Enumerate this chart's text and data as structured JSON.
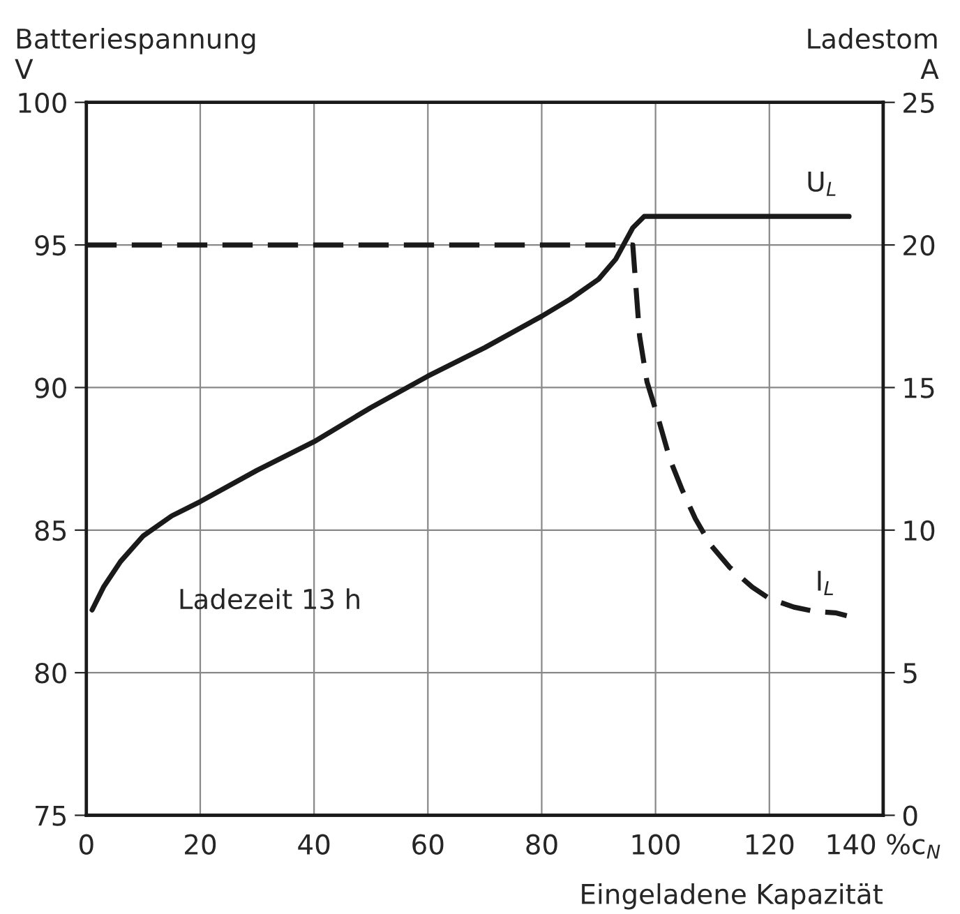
{
  "chart_data": {
    "type": "line",
    "xlabel": "Eingeladene Kapazität",
    "ylabel": "Batteriespannung\nV",
    "y2label": "Ladestom\nA",
    "series": [
      {
        "name": "U$_{L}$",
        "color": "#1a1a1a",
        "line_style": "solid",
        "x": [
          1,
          3,
          6,
          10,
          15,
          20,
          30,
          40,
          50,
          60,
          70,
          80,
          85,
          90,
          93,
          96,
          98,
          100,
          110,
          120,
          134
        ],
        "values": [
          82.2,
          83.0,
          83.9,
          84.8,
          85.5,
          86.0,
          87.1,
          88.1,
          89.3,
          90.4,
          91.4,
          92.5,
          93.1,
          93.8,
          94.5,
          95.6,
          96.0,
          96.0,
          96.0,
          96.0,
          96.0
        ]
      },
      {
        "name": "I$_{L}$",
        "color": "#1a1a1a",
        "line_style": "dashed",
        "axis": "y2",
        "x": [
          0,
          20,
          40,
          60,
          80,
          96,
          97.2,
          98.5,
          100.5,
          102.5,
          104.7,
          107,
          109.6,
          113,
          117,
          120,
          124.3,
          128,
          131.6,
          133.6
        ],
        "values": [
          20,
          20,
          20,
          20,
          20,
          20,
          16.8,
          15.2,
          13.9,
          12.5,
          11.4,
          10.4,
          9.5,
          8.7,
          8.0,
          7.6,
          7.3,
          7.15,
          7.1,
          7.0
        ]
      }
    ],
    "xlim": [
      0,
      140
    ],
    "xticks": [
      0,
      20,
      40,
      60,
      80,
      100,
      120,
      {
        "value": 140,
        "label": "140 %c$_{N}$"
      }
    ],
    "ylim": [
      75,
      100
    ],
    "yticks": [
      75,
      80,
      85,
      90,
      95,
      100
    ],
    "y2lim": [
      0,
      25
    ],
    "y2ticks": [
      0,
      5,
      10,
      15,
      20,
      25
    ],
    "grid": true,
    "legend": false,
    "marker": "none",
    "annotations": [
      "Ladezeit 13 h"
    ]
  }
}
